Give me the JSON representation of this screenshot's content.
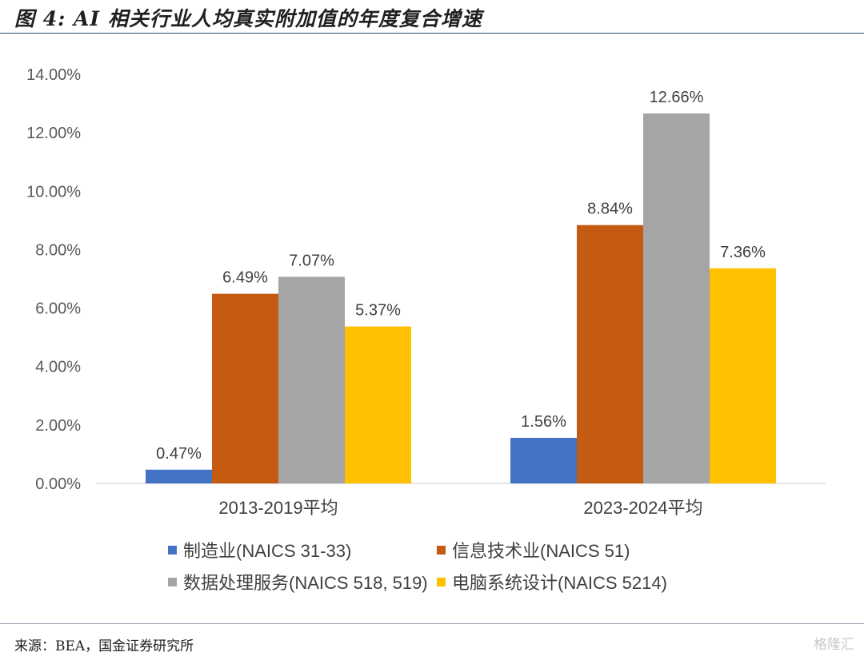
{
  "title": "图 4: AI 相关行业人均真实附加值的年度复合增速",
  "source": "来源：BEA，国金证券研究所",
  "watermark": "格隆汇",
  "chart_data": {
    "type": "bar",
    "categories": [
      "2013-2019平均",
      "2023-2024平均"
    ],
    "series": [
      {
        "name": "制造业(NAICS 31-33)",
        "color": "#4472c4",
        "values": [
          0.47,
          1.56
        ],
        "labels": [
          "0.47%",
          "1.56%"
        ]
      },
      {
        "name": "信息技术业(NAICS 51)",
        "color": "#c55a11",
        "values": [
          6.49,
          8.84
        ],
        "labels": [
          "6.49%",
          "8.84%"
        ]
      },
      {
        "name": "数据处理服务(NAICS 518, 519)",
        "color": "#a5a5a5",
        "values": [
          7.07,
          12.66
        ],
        "labels": [
          "7.07%",
          "12.66%"
        ]
      },
      {
        "name": "电脑系统设计(NAICS 5214)",
        "color": "#ffc000",
        "values": [
          5.37,
          7.36
        ],
        "labels": [
          "5.37%",
          "7.36%"
        ]
      }
    ],
    "ylim": [
      0,
      14
    ],
    "yticks": [
      "0.00%",
      "2.00%",
      "4.00%",
      "6.00%",
      "8.00%",
      "10.00%",
      "12.00%",
      "14.00%"
    ],
    "grid": false,
    "legend_position": "bottom"
  }
}
